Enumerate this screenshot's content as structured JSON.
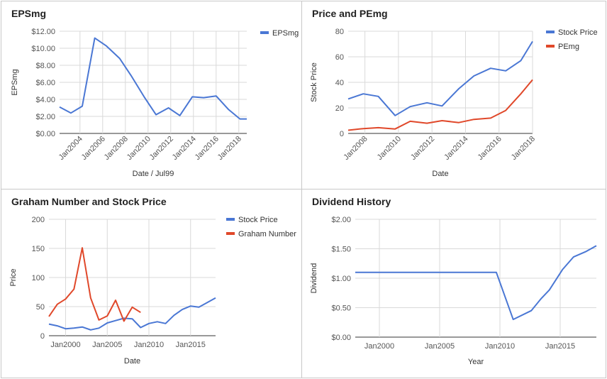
{
  "chart_data": [
    {
      "type": "line",
      "title": "EPSmg",
      "xlabel": "Date / Jul99",
      "ylabel": "EPSmg",
      "ylim": [
        0,
        12
      ],
      "yticks": [
        0,
        2,
        4,
        6,
        8,
        10,
        12
      ],
      "ytick_labels": [
        "$0.00",
        "$2.00",
        "$4.00",
        "$6.00",
        "$8.00",
        "$10.00",
        "$12.00"
      ],
      "xlim": [
        2002.2,
        2018.7
      ],
      "xticks": [
        2004,
        2006,
        2008,
        2010,
        2012,
        2014,
        2016,
        2018
      ],
      "xtick_labels": [
        "Jan2004",
        "Jan2006",
        "Jan2008",
        "Jan2010",
        "Jan2012",
        "Jan2014",
        "Jan2016",
        "Jan2018"
      ],
      "xtick_rotate": true,
      "legend": "top-right",
      "grid": true,
      "series": [
        {
          "name": "EPSmg",
          "color": "#4a77d4",
          "x": [
            2002.2,
            2003.2,
            2004.2,
            2005.3,
            2006.3,
            2007.5,
            2008.5,
            2009.7,
            2010.7,
            2011.8,
            2012.8,
            2013.9,
            2014.9,
            2016.0,
            2017.1,
            2018.1,
            2018.7
          ],
          "y": [
            3.1,
            2.4,
            3.2,
            11.2,
            10.3,
            8.8,
            6.8,
            4.2,
            2.2,
            3.0,
            2.1,
            4.3,
            4.2,
            4.4,
            2.8,
            1.7,
            1.7
          ]
        }
      ]
    },
    {
      "type": "line",
      "title": "Price and PEmg",
      "xlabel": "Date",
      "ylabel": "Stock Price",
      "ylim": [
        0,
        80
      ],
      "yticks": [
        0,
        20,
        40,
        60,
        80
      ],
      "ytick_labels": [
        "0",
        "20",
        "40",
        "60",
        "80"
      ],
      "xlim": [
        2007,
        2018
      ],
      "xticks": [
        2008,
        2010,
        2012,
        2014,
        2016,
        2018
      ],
      "xtick_labels": [
        "Jan2008",
        "Jan2010",
        "Jan2012",
        "Jan2014",
        "Jan2016",
        "Jan2018"
      ],
      "xtick_rotate": true,
      "legend": "top-right",
      "grid": true,
      "series": [
        {
          "name": "Stock Price",
          "color": "#4a77d4",
          "x": [
            2007,
            2007.9,
            2008.8,
            2009.8,
            2010.7,
            2011.7,
            2012.6,
            2013.6,
            2014.5,
            2015.5,
            2016.4,
            2017.3,
            2018
          ],
          "y": [
            27,
            31,
            29,
            14,
            21,
            24,
            21.5,
            35,
            45,
            51,
            49,
            57,
            72
          ]
        },
        {
          "name": "PEmg",
          "color": "#e0482a",
          "x": [
            2007,
            2007.9,
            2008.8,
            2009.8,
            2010.7,
            2011.7,
            2012.6,
            2013.6,
            2014.5,
            2015.5,
            2016.4,
            2017.3,
            2018
          ],
          "y": [
            2.5,
            3.8,
            4.5,
            3.5,
            9.5,
            8,
            10,
            8.5,
            11,
            12,
            18,
            31,
            42
          ]
        }
      ]
    },
    {
      "type": "line",
      "title": "Graham Number and Stock Price",
      "xlabel": "Date",
      "ylabel": "Price",
      "ylim": [
        0,
        200
      ],
      "yticks": [
        0,
        50,
        100,
        150,
        200
      ],
      "ytick_labels": [
        "0",
        "50",
        "100",
        "150",
        "200"
      ],
      "xlim": [
        1998,
        2018
      ],
      "xticks": [
        2000,
        2005,
        2010,
        2015
      ],
      "xtick_labels": [
        "Jan2000",
        "Jan2005",
        "Jan2010",
        "Jan2015"
      ],
      "xtick_rotate": false,
      "legend": "top-right",
      "grid": true,
      "series": [
        {
          "name": "Stock Price",
          "color": "#4a77d4",
          "x": [
            1998,
            1999,
            2000,
            2001,
            2002,
            2003,
            2004,
            2005,
            2006,
            2007,
            2008,
            2009,
            2010,
            2011,
            2012,
            2013,
            2014,
            2015,
            2016,
            2017,
            2018
          ],
          "y": [
            20,
            17,
            12,
            13,
            15,
            10,
            13,
            22,
            26,
            30,
            29,
            14,
            21,
            24,
            21,
            35,
            45,
            51,
            49,
            57,
            65
          ]
        },
        {
          "name": "Graham Number",
          "color": "#e0482a",
          "x": [
            1998,
            1999,
            2000,
            2001,
            2002,
            2003,
            2004,
            2005,
            2006,
            2007,
            2008,
            2009
          ],
          "y": [
            33,
            54,
            63,
            80,
            151,
            65,
            27,
            34,
            61,
            25,
            49,
            40
          ]
        }
      ]
    },
    {
      "type": "line",
      "title": "Dividend History",
      "xlabel": "Year",
      "ylabel": "Dividend",
      "ylim": [
        0,
        2
      ],
      "yticks": [
        0,
        0.5,
        1,
        1.5,
        2
      ],
      "ytick_labels": [
        "$0.00",
        "$0.50",
        "$1.00",
        "$1.50",
        "$2.00"
      ],
      "xlim": [
        1998,
        2018
      ],
      "xticks": [
        2000,
        2005,
        2010,
        2015
      ],
      "xtick_labels": [
        "Jan2000",
        "Jan2005",
        "Jan2010",
        "Jan2015"
      ],
      "xtick_rotate": false,
      "legend": "none",
      "grid": true,
      "series": [
        {
          "name": "",
          "color": "#4a77d4",
          "x": [
            1998,
            2009.7,
            2011.1,
            2012.6,
            2013.4,
            2014.1,
            2015.2,
            2016.1,
            2017.1,
            2018
          ],
          "y": [
            1.1,
            1.1,
            0.3,
            0.45,
            0.65,
            0.8,
            1.15,
            1.36,
            1.45,
            1.55
          ]
        }
      ]
    }
  ]
}
